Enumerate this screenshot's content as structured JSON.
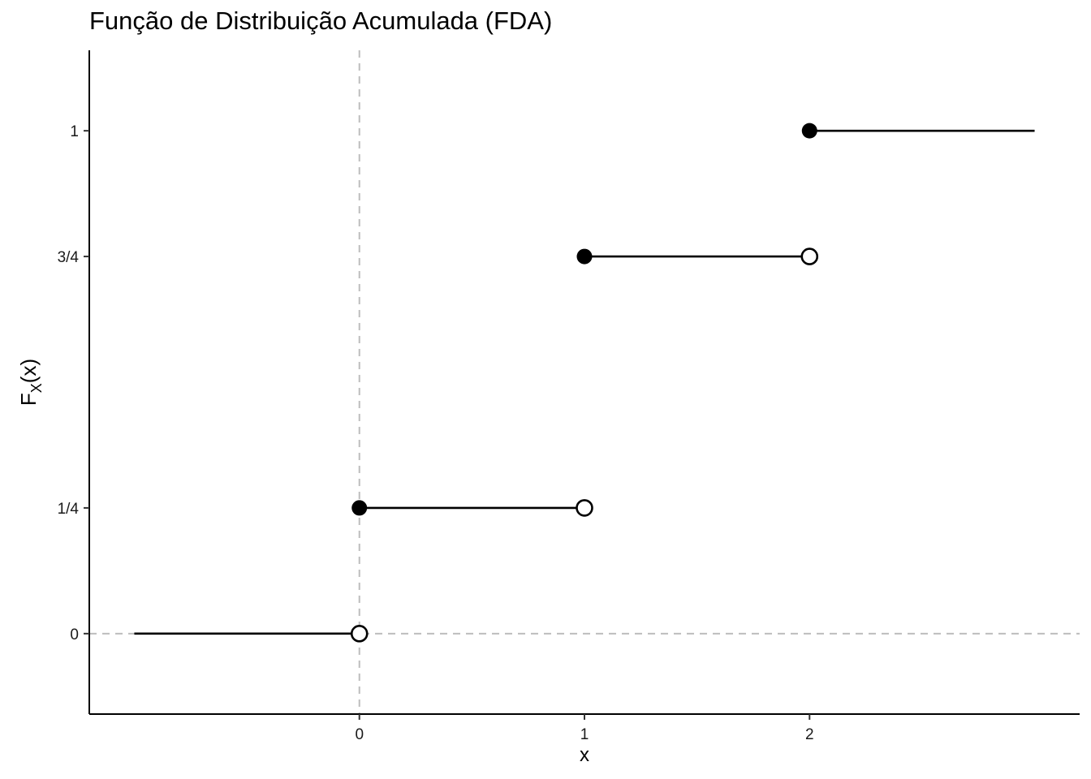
{
  "chart_data": {
    "type": "line",
    "title": "Função de Distribuição Acumulada (FDA)",
    "xlabel": "x",
    "ylabel": {
      "main": "F",
      "sub": "X",
      "rest": "(x)"
    },
    "xlim": [
      -1.2,
      3.2
    ],
    "ylim": [
      -0.16,
      1.16
    ],
    "x_ticks": [
      {
        "value": 0,
        "label": "0"
      },
      {
        "value": 1,
        "label": "1"
      },
      {
        "value": 2,
        "label": "2"
      }
    ],
    "y_ticks": [
      {
        "value": 0,
        "label": "0"
      },
      {
        "value": 0.25,
        "label": "1/4"
      },
      {
        "value": 0.75,
        "label": "3/4"
      },
      {
        "value": 1,
        "label": "1"
      }
    ],
    "reference_lines": {
      "vertical_x": 0,
      "horizontal_y": 0,
      "style": "dashed",
      "color": "#bdbdbd"
    },
    "segments": [
      {
        "x_start": -1.0,
        "x_end": 0,
        "y": 0
      },
      {
        "x_start": 0,
        "x_end": 1,
        "y": 0.25
      },
      {
        "x_start": 1,
        "x_end": 2,
        "y": 0.75
      },
      {
        "x_start": 2,
        "x_end": 3.0,
        "y": 1
      }
    ],
    "closed_points": [
      {
        "x": 0,
        "y": 0.25
      },
      {
        "x": 1,
        "y": 0.75
      },
      {
        "x": 2,
        "y": 1
      }
    ],
    "open_points": [
      {
        "x": 0,
        "y": 0
      },
      {
        "x": 1,
        "y": 0.25
      },
      {
        "x": 2,
        "y": 0.75
      }
    ],
    "grid": false,
    "colors": {
      "line": "#000000",
      "reference": "#bdbdbd",
      "open_fill": "#ffffff"
    }
  }
}
